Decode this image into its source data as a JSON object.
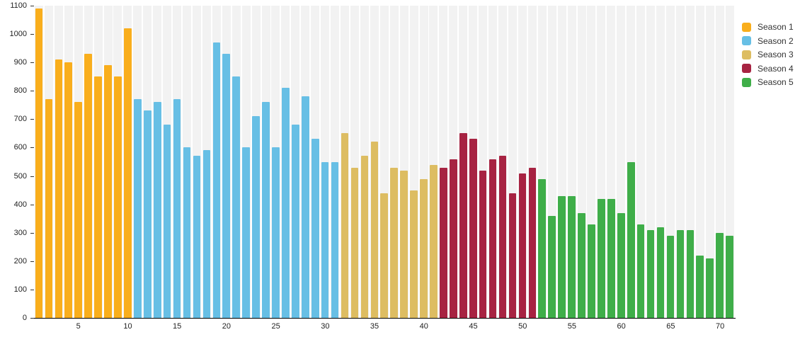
{
  "chart_data": {
    "type": "bar",
    "title": "",
    "xlabel": "",
    "ylabel": "",
    "x_range": [
      1,
      71
    ],
    "ylim": [
      0,
      1100
    ],
    "yticks": [
      0,
      100,
      200,
      300,
      400,
      500,
      600,
      700,
      800,
      900,
      1000,
      1100
    ],
    "xticks": [
      5,
      10,
      15,
      20,
      25,
      30,
      35,
      40,
      45,
      50,
      55,
      60,
      65,
      70
    ],
    "grid": "striped-column-background",
    "legend_position": "top-right",
    "series": [
      {
        "name": "Season 1",
        "color": "#F9AE1C",
        "x_start": 1,
        "values": [
          1090,
          770,
          910,
          900,
          760,
          930,
          850,
          890,
          850,
          1020
        ]
      },
      {
        "name": "Season 2",
        "color": "#67BFE5",
        "x_start": 11,
        "values": [
          770,
          730,
          760,
          680,
          770,
          600,
          570,
          590,
          970,
          930,
          850,
          600,
          710,
          760,
          600,
          810,
          680,
          780,
          630,
          550,
          550
        ]
      },
      {
        "name": "Season 3",
        "color": "#DDBD62",
        "x_start": 32,
        "values": [
          650,
          530,
          570,
          620,
          440,
          530,
          520,
          450,
          490,
          540
        ]
      },
      {
        "name": "Season 4",
        "color": "#A72342",
        "x_start": 42,
        "values": [
          530,
          560,
          650,
          630,
          520,
          560,
          570,
          440,
          510,
          530
        ]
      },
      {
        "name": "Season 5",
        "color": "#3FAE49",
        "x_start": 52,
        "values": [
          490,
          360,
          430,
          430,
          370,
          330,
          420,
          420,
          370,
          550,
          330,
          310,
          320,
          290,
          310,
          310,
          220,
          210,
          300,
          290
        ]
      }
    ]
  },
  "legend": {
    "items": [
      {
        "label": "Season 1",
        "color": "#F9AE1C"
      },
      {
        "label": "Season 2",
        "color": "#67BFE5"
      },
      {
        "label": "Season 3",
        "color": "#DDBD62"
      },
      {
        "label": "Season 4",
        "color": "#A72342"
      },
      {
        "label": "Season 5",
        "color": "#3FAE49"
      }
    ]
  },
  "colors": {
    "background": "#ffffff",
    "column_stripe": "#f2f2f2",
    "axis_line": "#000000",
    "tick_mark": "#333333",
    "axis_label": "#222222",
    "legend_text": "#333333"
  }
}
